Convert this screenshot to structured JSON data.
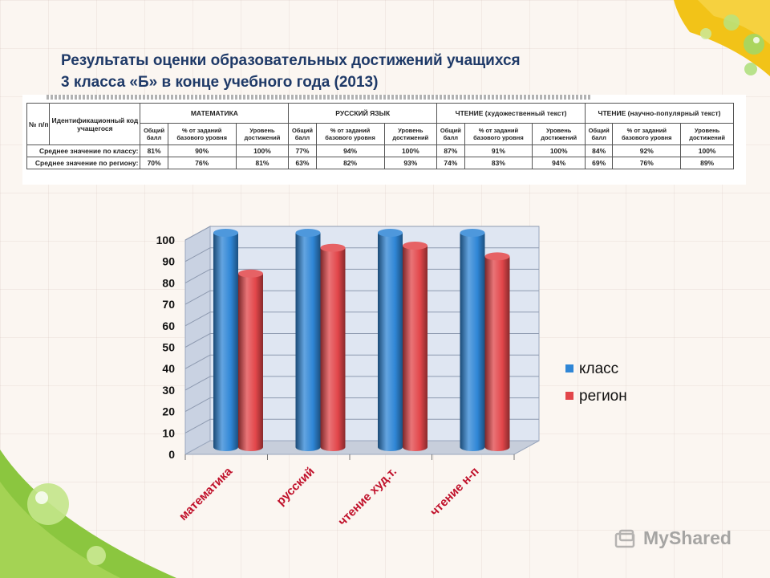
{
  "slide": {
    "title_line1": "Результаты оценки образовательных достижений учащихся",
    "title_line2": "3 класса «Б» в конце учебного года (2013)",
    "watermark": "MyShared"
  },
  "table": {
    "col_num": "№ п/п",
    "col_id": "Идентификационный код учащегося",
    "groups": [
      "МАТЕМАТИКА",
      "РУССКИЙ ЯЗЫК",
      "ЧТЕНИЕ (художественный текст)",
      "ЧТЕНИЕ (научно-популярный текст)"
    ],
    "subcols": [
      "Общий балл",
      "% от заданий базового уровня",
      "Уровень достижений"
    ],
    "rows": [
      {
        "label": "Среднее значение по классу:",
        "values": [
          "81%",
          "90%",
          "100%",
          "77%",
          "94%",
          "100%",
          "87%",
          "91%",
          "100%",
          "84%",
          "92%",
          "100%"
        ]
      },
      {
        "label": "Среднее значение по региону:",
        "values": [
          "70%",
          "76%",
          "81%",
          "63%",
          "82%",
          "93%",
          "74%",
          "83%",
          "94%",
          "69%",
          "76%",
          "89%"
        ]
      }
    ]
  },
  "chart_data": {
    "type": "bar",
    "title": "",
    "xlabel": "",
    "ylabel": "",
    "categories": [
      "математика",
      "русский",
      "чтение худ.т.",
      "чтение н-п"
    ],
    "series": [
      {
        "name": "класс",
        "values": [
          100,
          100,
          100,
          100
        ],
        "color": "#2f86d6"
      },
      {
        "name": "регион",
        "values": [
          81,
          93,
          94,
          89
        ],
        "color": "#e2464a"
      }
    ],
    "ylim": [
      0,
      100
    ],
    "yticks": [
      "0",
      "10",
      "20",
      "30",
      "40",
      "50",
      "60",
      "70",
      "80",
      "90",
      "100"
    ],
    "grid": true,
    "legend_position": "right",
    "style": "3d-cylinder"
  }
}
